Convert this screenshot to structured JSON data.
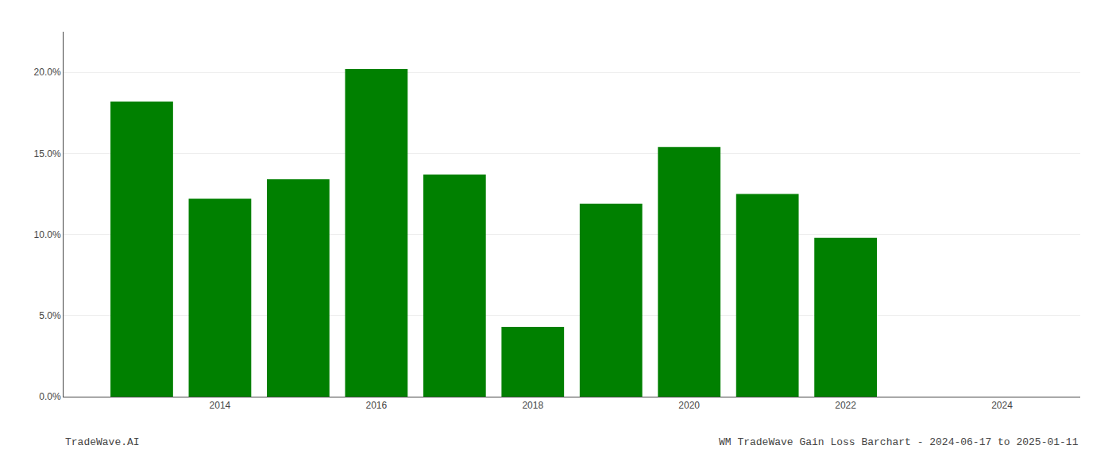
{
  "chart_data": {
    "type": "bar",
    "x": [
      2013,
      2014,
      2015,
      2016,
      2017,
      2018,
      2019,
      2020,
      2021,
      2022
    ],
    "values": [
      0.182,
      0.122,
      0.134,
      0.202,
      0.137,
      0.043,
      0.119,
      0.154,
      0.125,
      0.098
    ],
    "color": "#008000",
    "xlim": [
      2012.0,
      2025.0
    ],
    "xticks": [
      2014,
      2016,
      2018,
      2020,
      2022,
      2024
    ],
    "ylim": [
      0,
      0.225
    ],
    "yticks": [
      {
        "value": 0.0,
        "label": "0.0%"
      },
      {
        "value": 0.05,
        "label": "5.0%"
      },
      {
        "value": 0.1,
        "label": "10.0%"
      },
      {
        "value": 0.15,
        "label": "15.0%"
      },
      {
        "value": 0.2,
        "label": "20.0%"
      }
    ],
    "grid": true,
    "annotations": [
      "TradeWave.AI",
      "WM TradeWave Gain Loss Barchart - 2024-06-17 to 2025-01-11"
    ]
  }
}
